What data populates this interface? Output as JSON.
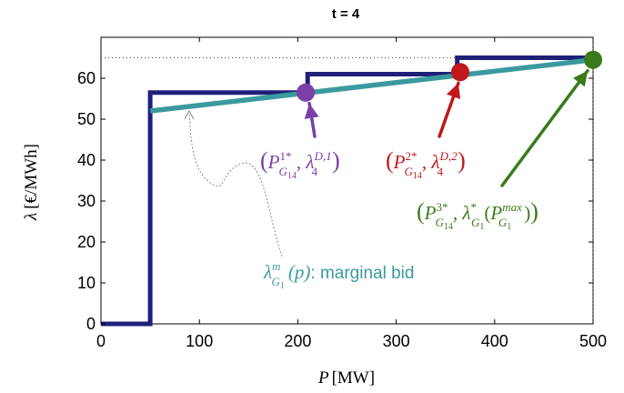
{
  "chart_data": {
    "type": "line",
    "title": "t = 4",
    "xlabel": "P",
    "xlabel_unit": "[MW]",
    "ylabel": "λ",
    "ylabel_unit": "[€/MWh]",
    "xlim": [
      0,
      500
    ],
    "ylim": [
      0,
      70
    ],
    "xticks": [
      0,
      100,
      200,
      300,
      400,
      500
    ],
    "yticks": [
      0,
      10,
      20,
      30,
      40,
      50,
      60
    ],
    "grid": false,
    "reference_line": {
      "y": 65,
      "style": "dotted"
    },
    "vertical_marker": {
      "x": 500,
      "style": "dotted"
    },
    "series": [
      {
        "kind": "step",
        "color": "#1f1f7a",
        "points": [
          [
            0,
            0
          ],
          [
            50,
            0
          ],
          [
            50,
            56.5
          ],
          [
            210,
            56.5
          ],
          [
            210,
            61
          ],
          [
            362,
            61
          ],
          [
            362,
            65
          ],
          [
            500,
            65
          ]
        ]
      },
      {
        "kind": "line",
        "color": "#3a9a9e",
        "points": [
          [
            50,
            52
          ],
          [
            500,
            64.5
          ]
        ]
      }
    ],
    "markers": [
      {
        "x": 208,
        "y": 56.5,
        "color": "#7b3fa8"
      },
      {
        "x": 365,
        "y": 61.5,
        "color": "#c0181c"
      },
      {
        "x": 500,
        "y": 64.5,
        "color": "#3a7a1a"
      }
    ]
  },
  "annotations": {
    "point1": {
      "open": "(",
      "main": "P",
      "sup": "1*",
      "sub": "G",
      "subsub": "14",
      "sep": ", ",
      "lam": "λ",
      "lamsup": "D,1",
      "lamsub": "4",
      "close": ")",
      "color": "#7b3fa8"
    },
    "point2": {
      "open": "(",
      "main": "P",
      "sup": "2*",
      "sub": "G",
      "subsub": "14",
      "sep": ", ",
      "lam": "λ",
      "lamsup": "D,2",
      "lamsub": "4",
      "close": ")",
      "color": "#c0181c"
    },
    "point3": {
      "open": "(",
      "main": "P",
      "sup": "3*",
      "sub": "G",
      "subsub": "14",
      "sep": ", ",
      "lam": "λ",
      "lamsup": "*",
      "lamsub": "G",
      "lamsubsub": "1",
      "arg_open": "(",
      "arg_main": "P",
      "arg_sup": "max",
      "arg_sub": "G",
      "arg_subsub": "1",
      "arg_close": ")",
      "close": ")",
      "color": "#3a7a1a"
    },
    "bid": {
      "lam": "λ",
      "sup": "m",
      "sub": "G",
      "subsub": "1",
      "arg": "(p)",
      "suffix": ": marginal bid",
      "color": "#3a9a9e"
    }
  }
}
